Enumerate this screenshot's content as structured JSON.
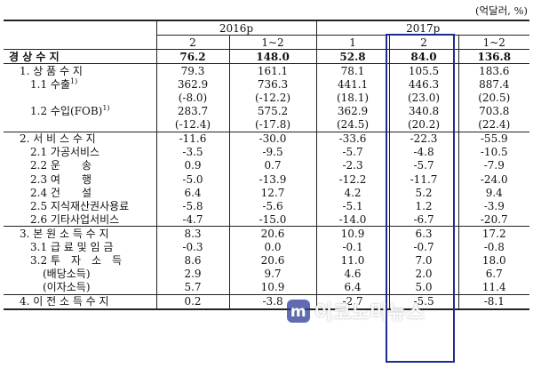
{
  "unit_note": "(억달러, %)",
  "header": {
    "group_2016": "2016p",
    "group_2017": "2017p",
    "sub_2016": [
      "2",
      "1~2"
    ],
    "sub_2017": [
      "1",
      "2",
      "1~2"
    ]
  },
  "rows": [
    {
      "label": "경 상 수 지",
      "values": [
        "76.2",
        "148.0",
        "52.8",
        "84.0",
        "136.8"
      ],
      "bold": true
    },
    {
      "label": "1. 상 품 수 지",
      "values": [
        "79.3",
        "161.1",
        "78.1",
        "105.5",
        "183.6"
      ]
    },
    {
      "label": "1.1 수출",
      "sup": "1)",
      "values": [
        "362.9",
        "736.3",
        "441.1",
        "446.3",
        "887.4"
      ]
    },
    {
      "label": "",
      "values": [
        "(-8.0)",
        "(-12.2)",
        "(18.1)",
        "(23.0)",
        "(20.5)"
      ]
    },
    {
      "label": "1.2 수입(FOB)",
      "sup": "1)",
      "values": [
        "283.7",
        "575.2",
        "362.9",
        "340.8",
        "703.8"
      ]
    },
    {
      "label": "",
      "values": [
        "(-12.4)",
        "(-17.8)",
        "(24.5)",
        "(20.2)",
        "(22.4)"
      ]
    },
    {
      "label": "2. 서 비 스 수 지",
      "values": [
        "-11.6",
        "-30.0",
        "-33.6",
        "-22.3",
        "-55.9"
      ]
    },
    {
      "label": "2.1 가공서비스",
      "values": [
        "-3.5",
        "-9.5",
        "-5.7",
        "-4.8",
        "-10.5"
      ]
    },
    {
      "label": "2.2 운　　송",
      "values": [
        "0.9",
        "0.7",
        "-2.3",
        "-5.7",
        "-7.9"
      ]
    },
    {
      "label": "2.3 여　　행",
      "values": [
        "-5.0",
        "-13.9",
        "-12.2",
        "-11.7",
        "-24.0"
      ]
    },
    {
      "label": "2.4 건　　설",
      "values": [
        "6.4",
        "12.7",
        "4.2",
        "5.2",
        "9.4"
      ]
    },
    {
      "label": "2.5 지식재산권사용료",
      "values": [
        "-5.8",
        "-5.6",
        "-5.1",
        "1.2",
        "-3.9"
      ]
    },
    {
      "label": "2.6 기타사업서비스",
      "values": [
        "-4.7",
        "-15.0",
        "-14.0",
        "-6.7",
        "-20.7"
      ]
    },
    {
      "label": "3. 본 원 소 득 수 지",
      "values": [
        "8.3",
        "20.6",
        "10.9",
        "6.3",
        "17.2"
      ]
    },
    {
      "label": "3.1 급 료 및 임 금",
      "values": [
        "-0.3",
        "0.0",
        "-0.1",
        "-0.7",
        "-0.8"
      ]
    },
    {
      "label": "3.2 투　자　소　득",
      "values": [
        "8.6",
        "20.6",
        "11.0",
        "7.0",
        "18.0"
      ]
    },
    {
      "label": "(배당소득)",
      "values": [
        "2.9",
        "9.7",
        "4.6",
        "2.0",
        "6.7"
      ]
    },
    {
      "label": "(이자소득)",
      "values": [
        "5.7",
        "10.9",
        "6.4",
        "5.0",
        "11.4"
      ]
    },
    {
      "label": "4. 이 전 소 득 수 지",
      "values": [
        "0.2",
        "-3.8",
        "-2.7",
        "-5.5",
        "-8.1"
      ]
    }
  ],
  "watermark": {
    "text": "이코노미뉴스",
    "logo_letter": "m"
  },
  "colors": {
    "highlight": "#1c2d8f",
    "watermark_logo": "#2b3a9a"
  }
}
